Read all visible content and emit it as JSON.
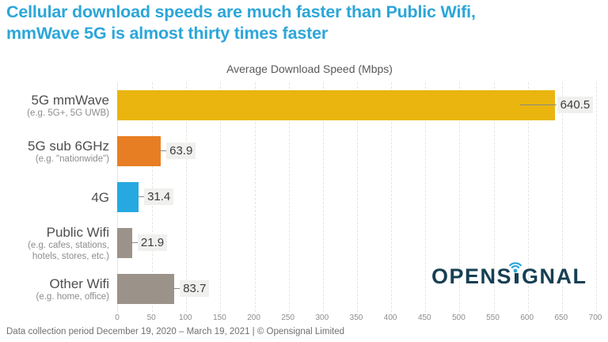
{
  "header": {
    "title_line1": "Cellular download speeds are much faster than Public Wifi,",
    "title_line2": "mmWave 5G is almost thirty times faster",
    "title_color": "#2CA6D9"
  },
  "chart_data": {
    "type": "bar",
    "orientation": "horizontal",
    "title": "Average Download Speed (Mbps)",
    "categories": [
      "5G mmWave",
      "5G sub 6GHz",
      "4G",
      "Public Wifi",
      "Other Wifi"
    ],
    "category_sublabels": [
      "(e.g. 5G+, 5G UWB)",
      "(e.g. \"nationwide\")",
      "",
      "(e.g. cafes, stations,\nhotels, stores, etc.)",
      "(e.g. home, office)"
    ],
    "values": [
      640.5,
      63.9,
      31.4,
      21.9,
      83.7
    ],
    "value_labels": [
      "640.5",
      "63.9",
      "31.4",
      "21.9",
      "83.7"
    ],
    "bar_colors": [
      "#E9B50E",
      "#E87E23",
      "#25A9E0",
      "#9B9289",
      "#9B9289"
    ],
    "xlim": [
      0,
      700
    ],
    "x_ticks": [
      0,
      50,
      100,
      150,
      200,
      250,
      300,
      350,
      400,
      450,
      500,
      550,
      600,
      650,
      700
    ],
    "grid": "vertical-dashed",
    "legend": "none",
    "xlabel": "",
    "ylabel": ""
  },
  "logo": {
    "full": "OPENSIGNAL",
    "part1": "OPENS",
    "part2": "GNAL",
    "navy": "#173F54",
    "cyan": "#2CA6D9"
  },
  "footer": {
    "text": "Data collection period December 19, 2020 – March 19, 2021  |  © Opensignal Limited"
  }
}
